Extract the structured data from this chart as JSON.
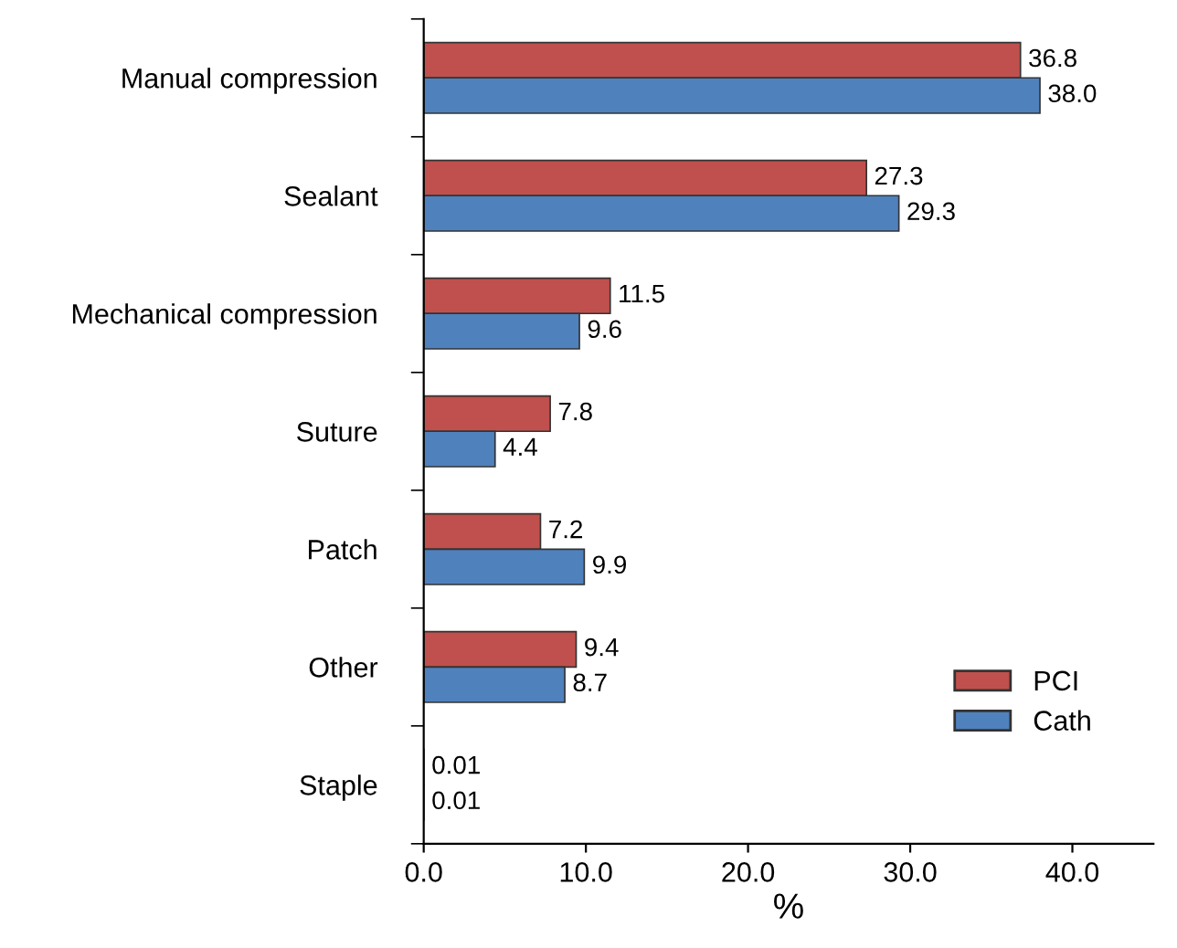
{
  "chart_data": {
    "type": "bar",
    "orientation": "horizontal",
    "xlabel": "%",
    "categories": [
      "Manual compression",
      "Sealant",
      "Mechanical compression",
      "Suture",
      "Patch",
      "Other",
      "Staple"
    ],
    "series": [
      {
        "name": "PCI",
        "color": "#c0504d",
        "values": [
          36.8,
          27.3,
          11.5,
          7.8,
          7.2,
          9.4,
          0.01
        ],
        "value_labels": [
          "36.8",
          "27.3",
          "11.5",
          "7.8",
          "7.2",
          "9.4",
          "0.01"
        ]
      },
      {
        "name": "Cath",
        "color": "#4f81bd",
        "values": [
          38.0,
          29.3,
          9.6,
          4.4,
          9.9,
          8.7,
          0.01
        ],
        "value_labels": [
          "38.0",
          "29.3",
          "9.6",
          "4.4",
          "9.9",
          "8.7",
          "0.01"
        ]
      }
    ],
    "xlim": [
      0,
      45
    ],
    "xticks": [
      {
        "value": 0,
        "label": "0.0"
      },
      {
        "value": 10,
        "label": "10.0"
      },
      {
        "value": 20,
        "label": "20.0"
      },
      {
        "value": 30,
        "label": "30.0"
      },
      {
        "value": 40,
        "label": "40.0"
      }
    ],
    "grid": false,
    "legend": "bottom right"
  }
}
